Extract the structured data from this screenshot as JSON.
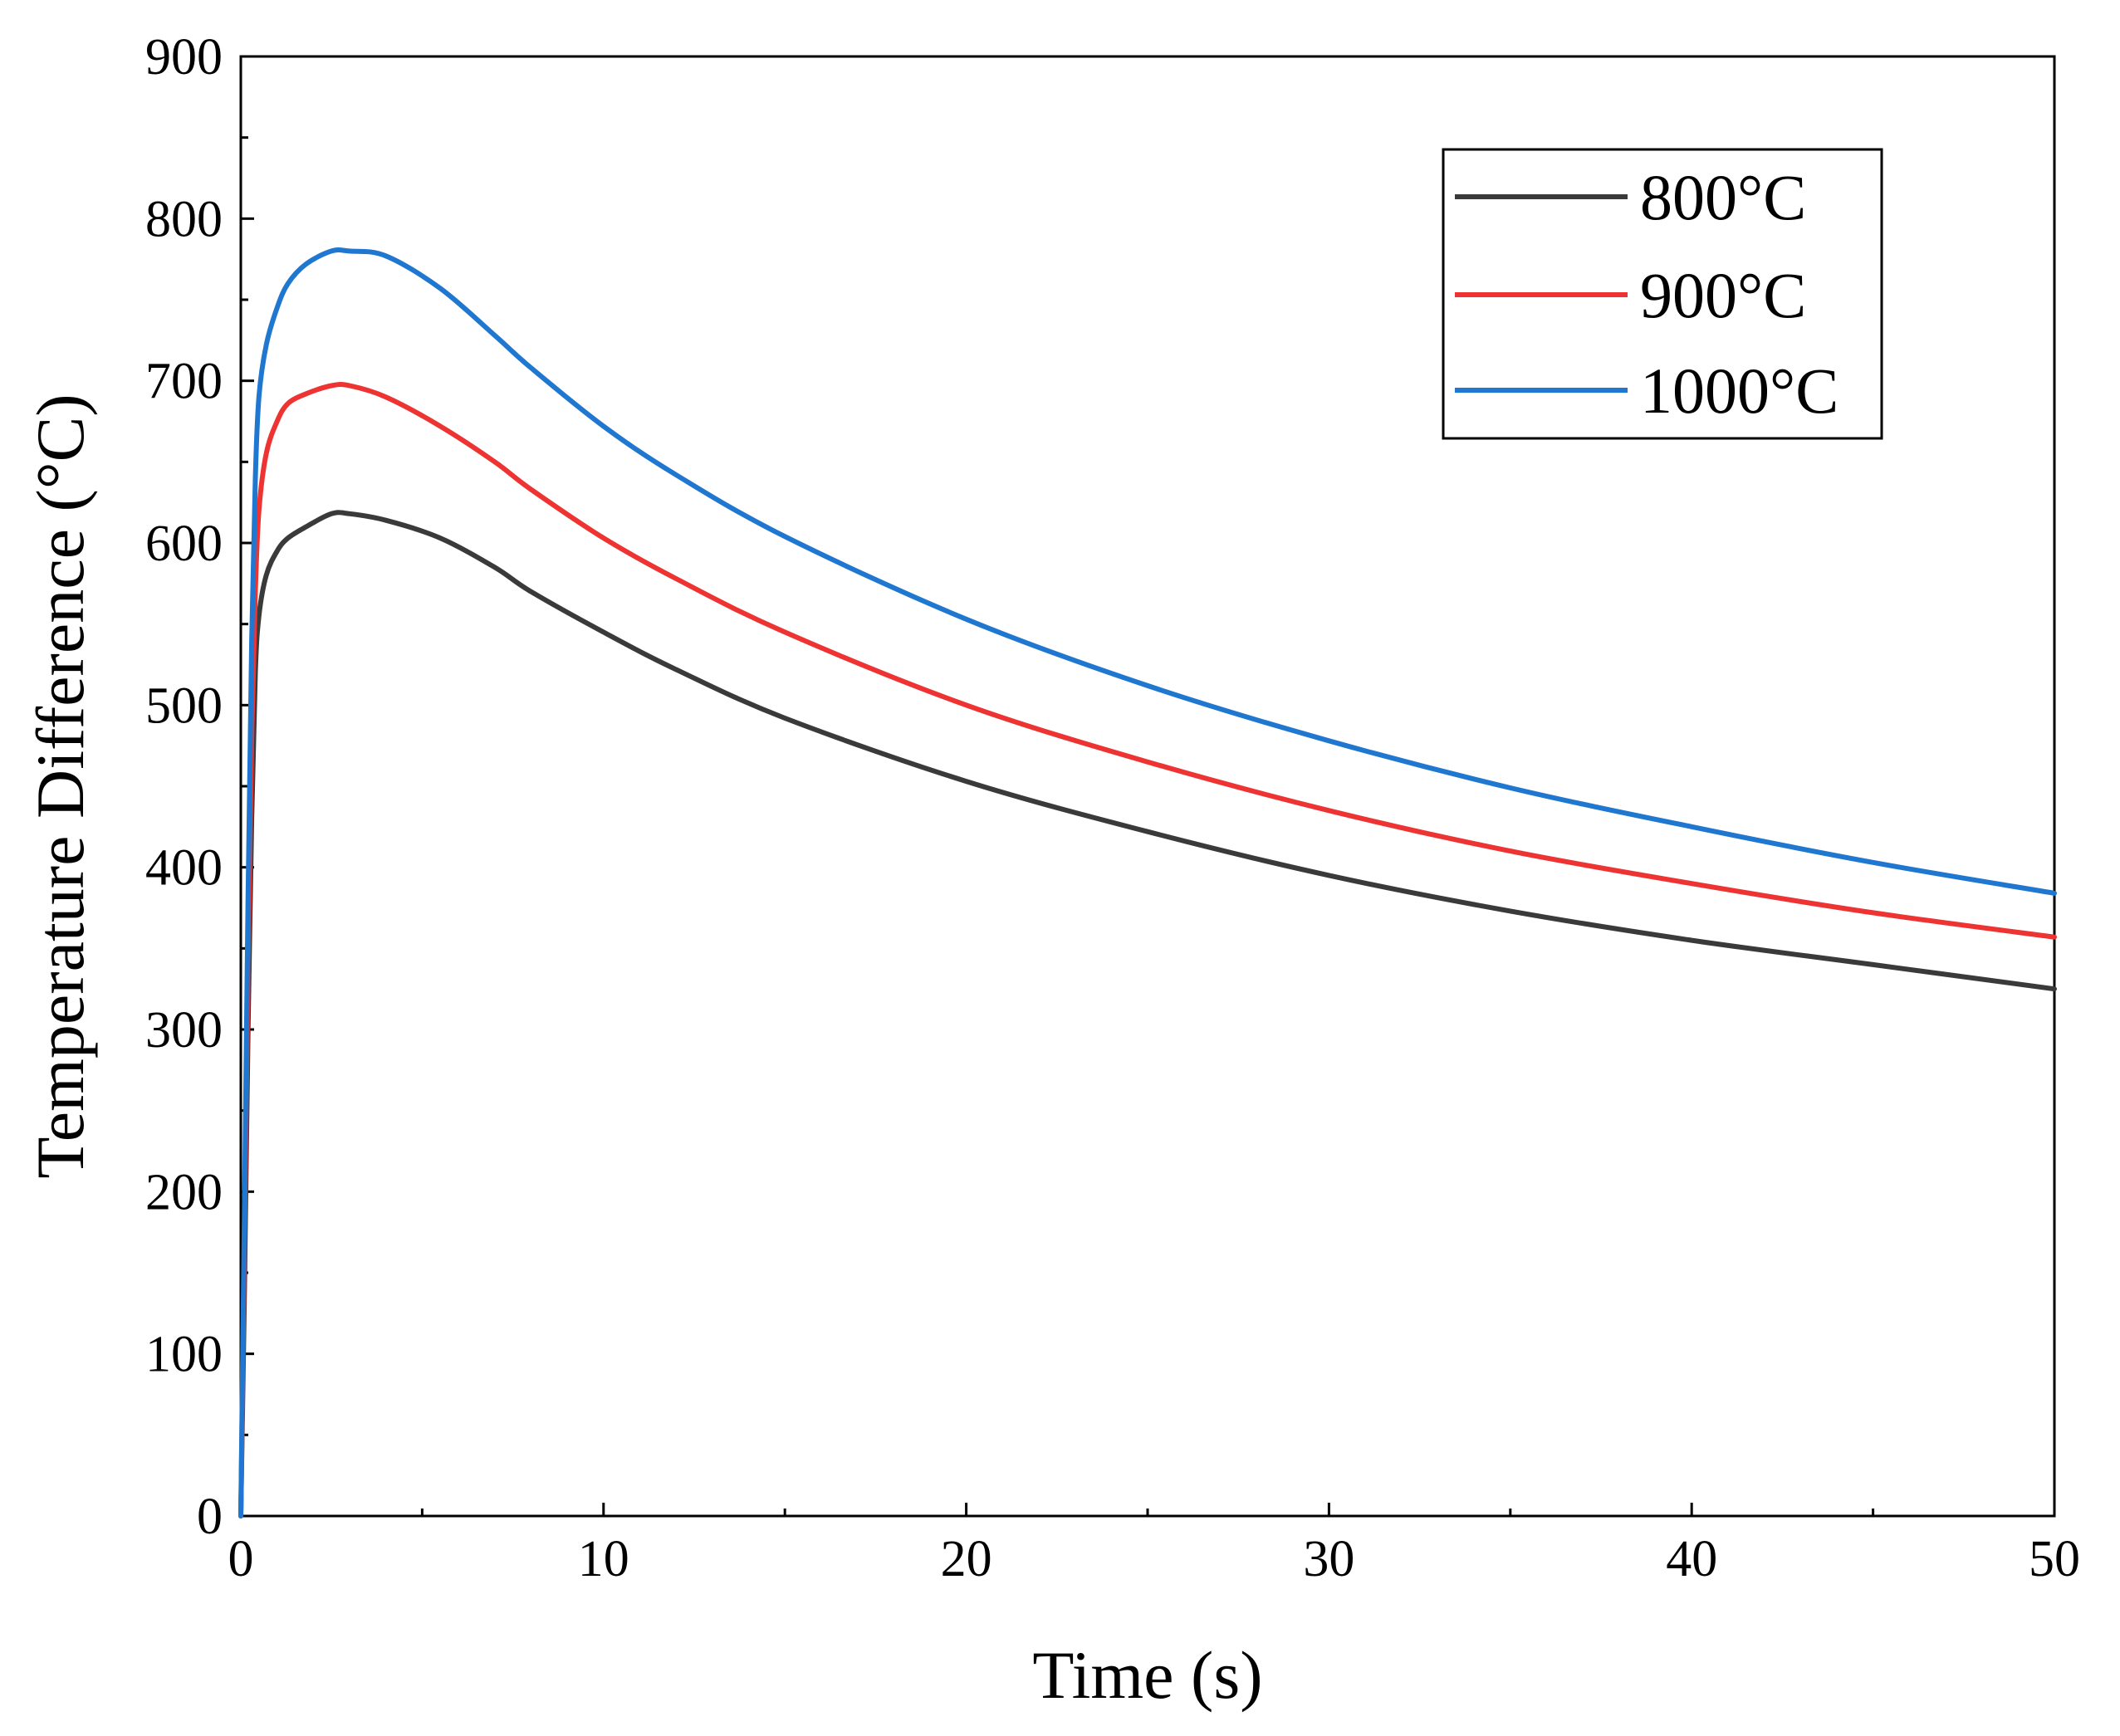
{
  "chart_data": {
    "type": "line",
    "title": "",
    "xlabel": "Time (s)",
    "ylabel": "Temperature Difference (°C)",
    "xlim": [
      0,
      50
    ],
    "ylim": [
      0,
      900
    ],
    "xticks": [
      0,
      10,
      20,
      30,
      40,
      50
    ],
    "yticks": [
      0,
      100,
      200,
      300,
      400,
      500,
      600,
      700,
      800,
      900
    ],
    "grid": false,
    "legend_position": "top-right",
    "series": [
      {
        "name": "800°C",
        "color": "#3a3a3a",
        "x": [
          0,
          0.1,
          0.2,
          0.3,
          0.4,
          0.5,
          0.7,
          1.0,
          1.3,
          1.8,
          2.5,
          3.0,
          4.0,
          5.5,
          7,
          8,
          10,
          12,
          15,
          20,
          25,
          30,
          35,
          40,
          45,
          50
        ],
        "y": [
          0,
          140,
          300,
          430,
          520,
          555,
          580,
          595,
          603,
          610,
          618,
          618,
          614,
          603,
          585,
          570,
          545,
          522,
          492,
          453,
          422,
          395,
          373,
          355,
          340,
          325
        ]
      },
      {
        "name": "900°C",
        "color": "#ee3333",
        "x": [
          0,
          0.1,
          0.2,
          0.3,
          0.4,
          0.5,
          0.7,
          1.0,
          1.3,
          1.8,
          2.5,
          3.0,
          4.0,
          5.5,
          7,
          8,
          10,
          12,
          15,
          20,
          25,
          30,
          35,
          40,
          45,
          50
        ],
        "y": [
          0,
          170,
          340,
          480,
          570,
          620,
          655,
          675,
          686,
          692,
          697,
          697,
          690,
          672,
          650,
          633,
          603,
          578,
          545,
          500,
          465,
          435,
          410,
          390,
          372,
          357
        ]
      },
      {
        "name": "1000°C",
        "color": "#1f77d0",
        "x": [
          0,
          0.1,
          0.2,
          0.3,
          0.4,
          0.5,
          0.7,
          1.0,
          1.3,
          1.8,
          2.5,
          3.0,
          4.0,
          5.5,
          7,
          8,
          10,
          12,
          15,
          20,
          25,
          30,
          35,
          40,
          45,
          50
        ],
        "y": [
          0,
          190,
          380,
          540,
          640,
          690,
          722,
          745,
          760,
          772,
          780,
          780,
          777,
          757,
          728,
          708,
          672,
          642,
          604,
          553,
          512,
          478,
          449,
          425,
          403,
          384
        ]
      }
    ]
  }
}
